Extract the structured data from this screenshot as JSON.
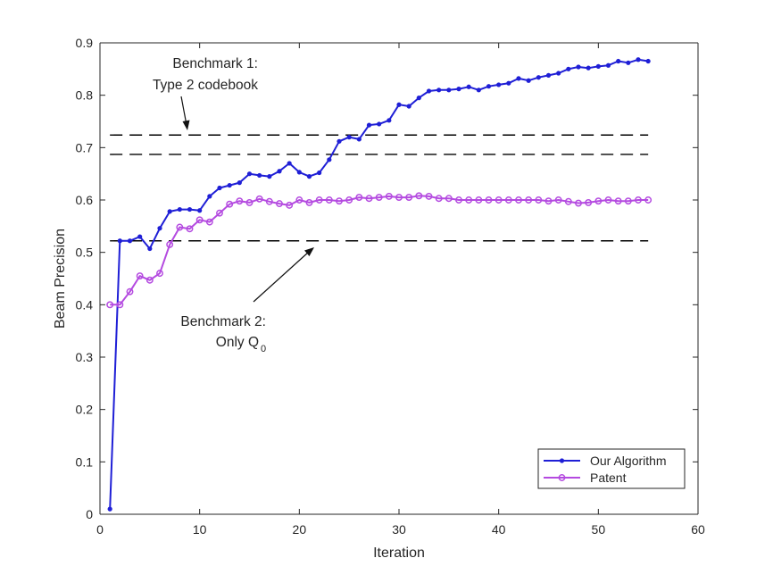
{
  "chart_data": {
    "type": "line",
    "title": "",
    "xlabel": "Iteration",
    "ylabel": "Beam Precision",
    "xlim": [
      0,
      60
    ],
    "ylim": [
      0,
      0.9
    ],
    "xticks": [
      0,
      10,
      20,
      30,
      40,
      50,
      60
    ],
    "yticks": [
      0,
      0.1,
      0.2,
      0.3,
      0.4,
      0.5,
      0.6,
      0.7,
      0.8,
      0.9
    ],
    "grid": false,
    "legend_position": "bottom-right",
    "series": [
      {
        "name": "Our Algorithm",
        "color": "#1f1fd6",
        "marker": "filled-dot",
        "x": [
          1,
          2,
          3,
          4,
          5,
          6,
          7,
          8,
          9,
          10,
          11,
          12,
          13,
          14,
          15,
          16,
          17,
          18,
          19,
          20,
          21,
          22,
          23,
          24,
          25,
          26,
          27,
          28,
          29,
          30,
          31,
          32,
          33,
          34,
          35,
          36,
          37,
          38,
          39,
          40,
          41,
          42,
          43,
          44,
          45,
          46,
          47,
          48,
          49,
          50,
          51,
          52,
          53,
          54,
          55
        ],
        "values": [
          0.01,
          0.522,
          0.522,
          0.53,
          0.507,
          0.546,
          0.578,
          0.582,
          0.582,
          0.58,
          0.607,
          0.623,
          0.628,
          0.633,
          0.65,
          0.647,
          0.645,
          0.655,
          0.67,
          0.653,
          0.645,
          0.652,
          0.677,
          0.712,
          0.72,
          0.716,
          0.743,
          0.745,
          0.752,
          0.782,
          0.779,
          0.795,
          0.808,
          0.81,
          0.81,
          0.812,
          0.816,
          0.81,
          0.817,
          0.82,
          0.823,
          0.832,
          0.828,
          0.834,
          0.838,
          0.842,
          0.85,
          0.854,
          0.852,
          0.855,
          0.857,
          0.865,
          0.862,
          0.868,
          0.865
        ]
      },
      {
        "name": "Patent",
        "color": "#b44ae0",
        "marker": "open-circle",
        "x": [
          1,
          2,
          3,
          4,
          5,
          6,
          7,
          8,
          9,
          10,
          11,
          12,
          13,
          14,
          15,
          16,
          17,
          18,
          19,
          20,
          21,
          22,
          23,
          24,
          25,
          26,
          27,
          28,
          29,
          30,
          31,
          32,
          33,
          34,
          35,
          36,
          37,
          38,
          39,
          40,
          41,
          42,
          43,
          44,
          45,
          46,
          47,
          48,
          49,
          50,
          51,
          52,
          53,
          54,
          55
        ],
        "values": [
          0.4,
          0.4,
          0.425,
          0.455,
          0.447,
          0.46,
          0.515,
          0.548,
          0.545,
          0.562,
          0.558,
          0.575,
          0.592,
          0.598,
          0.595,
          0.602,
          0.597,
          0.593,
          0.59,
          0.6,
          0.595,
          0.6,
          0.6,
          0.598,
          0.6,
          0.605,
          0.603,
          0.605,
          0.607,
          0.605,
          0.605,
          0.608,
          0.607,
          0.603,
          0.603,
          0.6,
          0.6,
          0.6,
          0.6,
          0.6,
          0.6,
          0.6,
          0.6,
          0.6,
          0.598,
          0.6,
          0.597,
          0.594,
          0.595,
          0.598,
          0.6,
          0.598,
          0.598,
          0.6,
          0.6
        ]
      }
    ],
    "reference_lines": [
      {
        "y": 0.724,
        "style": "dashed",
        "color": "#000000",
        "x_range": [
          1,
          55
        ]
      },
      {
        "y": 0.687,
        "style": "dashed",
        "color": "#000000",
        "x_range": [
          1,
          55
        ]
      },
      {
        "y": 0.522,
        "style": "dashed",
        "color": "#000000",
        "x_range": [
          1,
          55
        ]
      }
    ],
    "annotations": [
      {
        "lines": [
          "Benchmark 1:",
          "Type 2 codebook"
        ],
        "arrow_to": {
          "x": 8.8,
          "y": 0.725
        }
      },
      {
        "lines": [
          "Benchmark 2:",
          "Only Q"
        ],
        "subscript": "0",
        "arrow_to": {
          "x": 21.5,
          "y": 0.525
        }
      }
    ]
  }
}
